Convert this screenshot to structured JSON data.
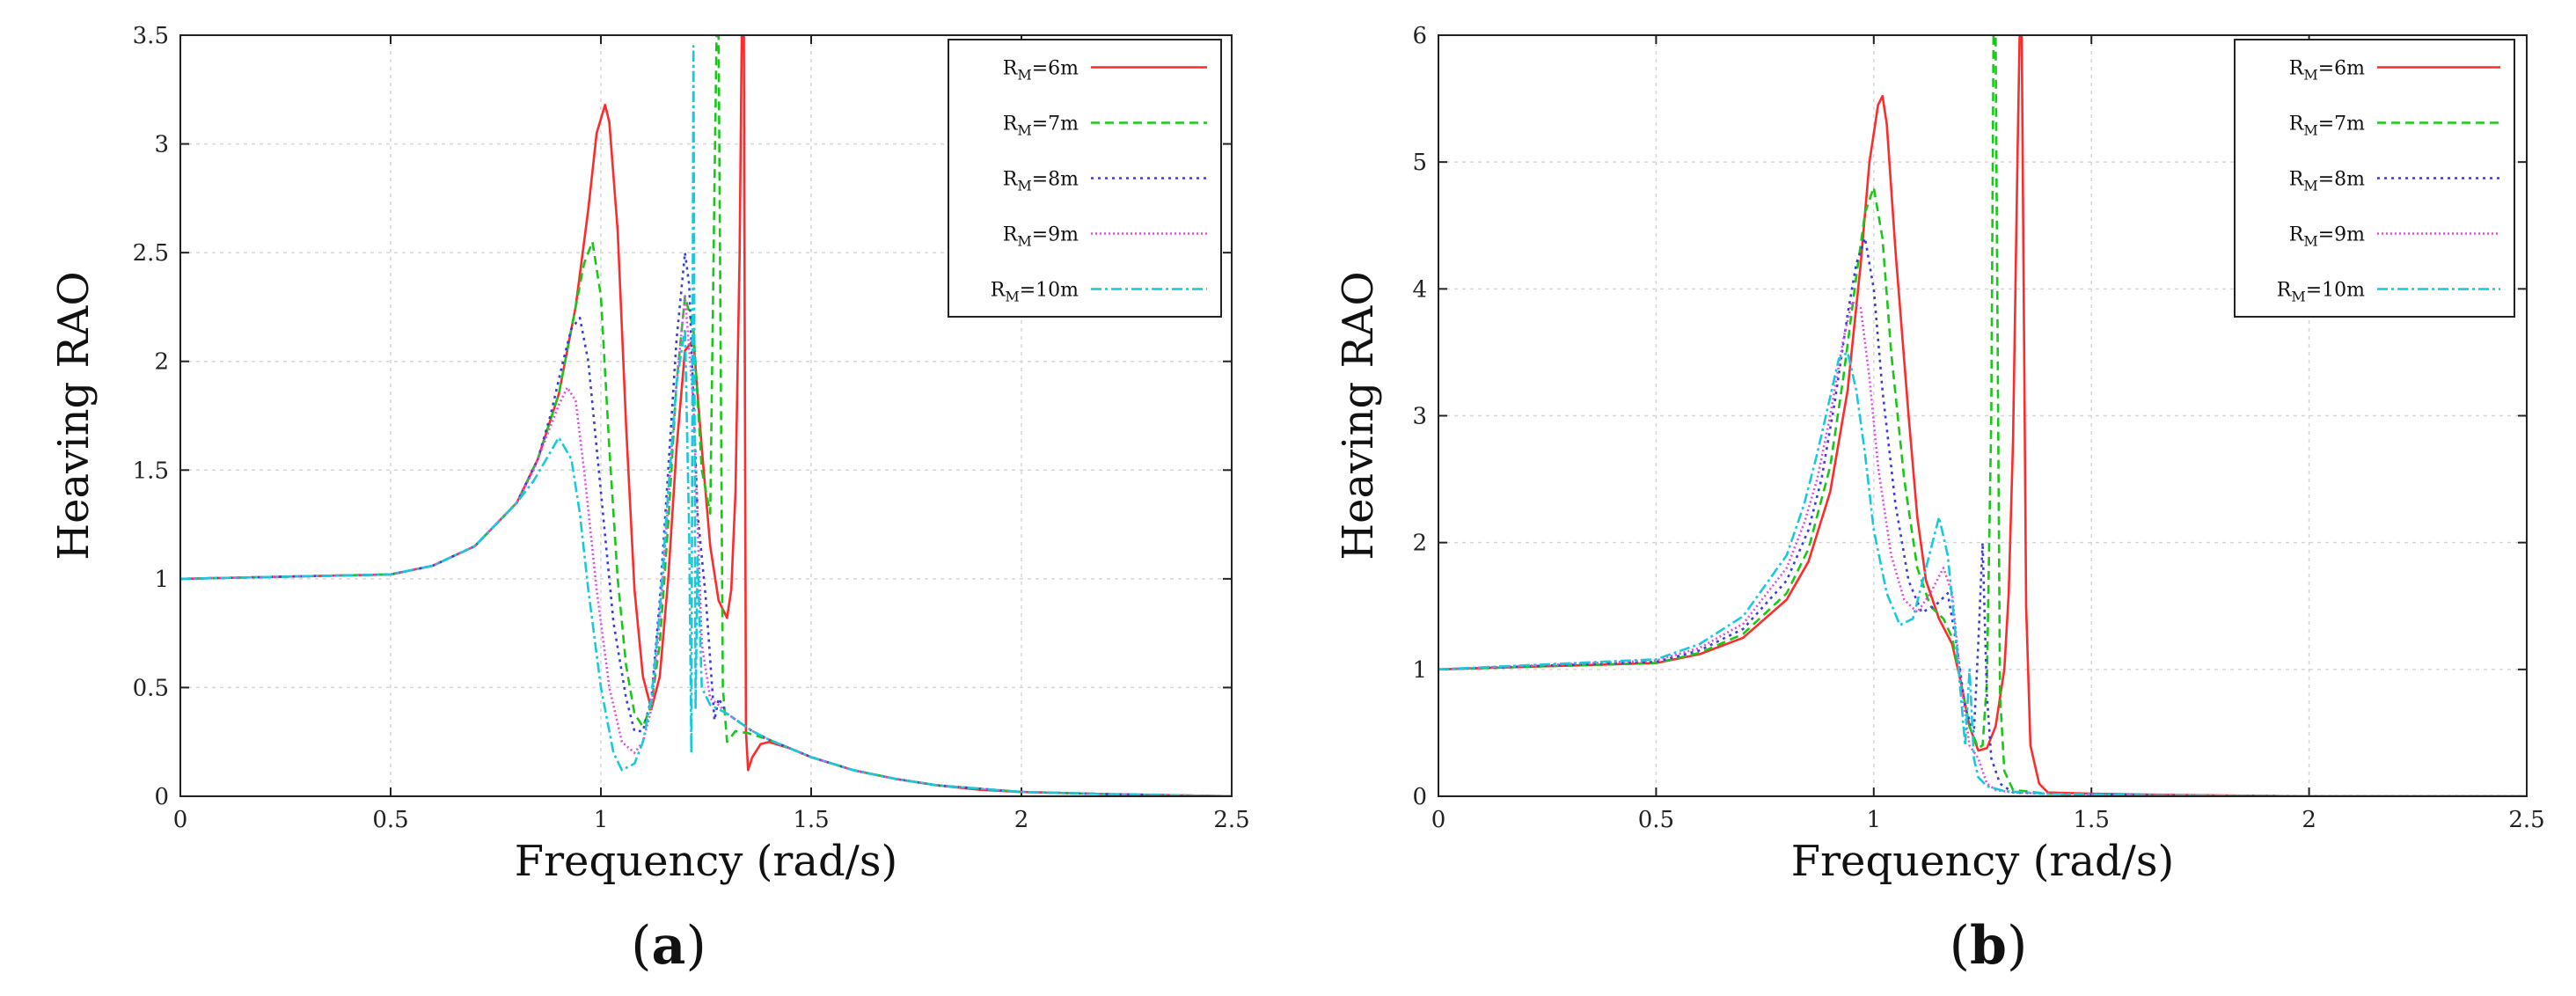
{
  "colors": {
    "R6": "#ff2a2a",
    "R7": "#18c818",
    "R8": "#3b3bd9",
    "R9": "#e24be2",
    "R10": "#17c9dd"
  },
  "chart_data": [
    {
      "type": "line",
      "panel_label": "(a)",
      "xlabel": "Frequency (rad/s)",
      "ylabel": "Heaving RAO",
      "xlim": [
        0,
        2.5
      ],
      "ylim": [
        0,
        3.5
      ],
      "xticks": [
        "0",
        "0.5",
        "1",
        "1.5",
        "2",
        "2.5"
      ],
      "yticks": [
        "0",
        "0.5",
        "1",
        "1.5",
        "2",
        "2.5",
        "3",
        "3.5"
      ],
      "grid": true,
      "legend_position": "top-right",
      "series": [
        {
          "legend_main": "R",
          "legend_sub": "M",
          "legend_rest": "=6m",
          "color_key": "R6",
          "dash": "",
          "x": [
            0,
            0.5,
            0.6,
            0.7,
            0.8,
            0.85,
            0.9,
            0.94,
            0.97,
            0.99,
            1.01,
            1.02,
            1.04,
            1.06,
            1.08,
            1.1,
            1.12,
            1.14,
            1.16,
            1.18,
            1.2,
            1.22,
            1.24,
            1.26,
            1.28,
            1.3,
            1.31,
            1.32,
            1.33,
            1.335,
            1.34,
            1.345,
            1.35,
            1.36,
            1.38,
            1.4,
            1.45,
            1.5,
            1.6,
            1.7,
            1.8,
            1.9,
            2.0,
            2.2,
            2.5
          ],
          "y": [
            1.0,
            1.02,
            1.06,
            1.15,
            1.35,
            1.55,
            1.85,
            2.25,
            2.7,
            3.05,
            3.18,
            3.1,
            2.6,
            1.7,
            0.95,
            0.55,
            0.4,
            0.55,
            1.0,
            1.6,
            2.05,
            2.1,
            1.6,
            1.15,
            0.9,
            0.82,
            0.95,
            1.4,
            2.5,
            3.5,
            3.5,
            0.3,
            0.12,
            0.18,
            0.24,
            0.25,
            0.22,
            0.18,
            0.12,
            0.08,
            0.05,
            0.03,
            0.02,
            0.01,
            0.0
          ]
        },
        {
          "legend_main": "R",
          "legend_sub": "M",
          "legend_rest": "=7m",
          "color_key": "R7",
          "dash": "10 6",
          "x": [
            0,
            0.5,
            0.6,
            0.7,
            0.8,
            0.85,
            0.9,
            0.93,
            0.96,
            0.98,
            1.0,
            1.02,
            1.04,
            1.06,
            1.08,
            1.1,
            1.12,
            1.14,
            1.16,
            1.18,
            1.2,
            1.22,
            1.24,
            1.26,
            1.27,
            1.275,
            1.28,
            1.29,
            1.3,
            1.32,
            1.35,
            1.4,
            1.45,
            1.5,
            1.6,
            1.7,
            1.8,
            2.0,
            2.2,
            2.5
          ],
          "y": [
            1.0,
            1.02,
            1.06,
            1.15,
            1.35,
            1.55,
            1.85,
            2.15,
            2.45,
            2.55,
            2.3,
            1.6,
            1.0,
            0.6,
            0.38,
            0.32,
            0.42,
            0.7,
            1.25,
            1.9,
            2.3,
            2.15,
            1.5,
            1.3,
            2.8,
            3.5,
            3.5,
            0.5,
            0.25,
            0.3,
            0.29,
            0.26,
            0.22,
            0.18,
            0.12,
            0.08,
            0.05,
            0.02,
            0.01,
            0.0
          ]
        },
        {
          "legend_main": "R",
          "legend_sub": "M",
          "legend_rest": "=8m",
          "color_key": "R8",
          "dash": "3 5",
          "x": [
            0,
            0.5,
            0.6,
            0.7,
            0.8,
            0.85,
            0.88,
            0.91,
            0.93,
            0.95,
            0.97,
            1.0,
            1.03,
            1.06,
            1.08,
            1.1,
            1.12,
            1.14,
            1.16,
            1.18,
            1.2,
            1.21,
            1.23,
            1.25,
            1.27,
            1.28,
            1.3,
            1.33,
            1.36,
            1.4,
            1.45,
            1.5,
            1.6,
            1.7,
            1.8,
            2.0,
            2.2,
            2.5
          ],
          "y": [
            1.0,
            1.02,
            1.06,
            1.15,
            1.35,
            1.55,
            1.75,
            2.0,
            2.15,
            2.2,
            2.0,
            1.4,
            0.8,
            0.45,
            0.3,
            0.3,
            0.45,
            0.9,
            1.5,
            2.1,
            2.5,
            2.35,
            1.3,
            0.9,
            0.35,
            0.45,
            0.38,
            0.34,
            0.3,
            0.26,
            0.22,
            0.18,
            0.12,
            0.08,
            0.05,
            0.02,
            0.01,
            0.0
          ]
        },
        {
          "legend_main": "R",
          "legend_sub": "M",
          "legend_rest": "=9m",
          "color_key": "R9",
          "dash": "2 3",
          "x": [
            0,
            0.5,
            0.6,
            0.7,
            0.8,
            0.84,
            0.87,
            0.9,
            0.92,
            0.94,
            0.96,
            0.99,
            1.02,
            1.05,
            1.08,
            1.1,
            1.12,
            1.14,
            1.16,
            1.18,
            1.2,
            1.22,
            1.24,
            1.26,
            1.28,
            1.3,
            1.33,
            1.36,
            1.4,
            1.45,
            1.5,
            1.6,
            1.7,
            1.8,
            2.0,
            2.2,
            2.5
          ],
          "y": [
            1.0,
            1.02,
            1.06,
            1.15,
            1.35,
            1.5,
            1.65,
            1.8,
            1.88,
            1.82,
            1.5,
            0.95,
            0.5,
            0.25,
            0.2,
            0.25,
            0.4,
            0.8,
            1.35,
            1.9,
            2.3,
            1.8,
            0.7,
            0.45,
            0.42,
            0.38,
            0.34,
            0.3,
            0.26,
            0.22,
            0.18,
            0.12,
            0.08,
            0.05,
            0.02,
            0.01,
            0.0
          ]
        },
        {
          "legend_main": "R",
          "legend_sub": "M",
          "legend_rest": "=10m",
          "color_key": "R10",
          "dash": "12 4 3 4",
          "x": [
            0,
            0.5,
            0.6,
            0.7,
            0.8,
            0.84,
            0.87,
            0.9,
            0.93,
            0.95,
            0.97,
            1.0,
            1.03,
            1.05,
            1.08,
            1.1,
            1.12,
            1.14,
            1.16,
            1.18,
            1.2,
            1.21,
            1.215,
            1.22,
            1.225,
            1.23,
            1.24,
            1.26,
            1.28,
            1.3,
            1.33,
            1.36,
            1.4,
            1.45,
            1.5,
            1.6,
            1.7,
            1.8,
            2.0,
            2.2,
            2.5
          ],
          "y": [
            1.0,
            1.02,
            1.06,
            1.15,
            1.35,
            1.45,
            1.55,
            1.65,
            1.55,
            1.3,
            0.95,
            0.5,
            0.2,
            0.12,
            0.15,
            0.25,
            0.45,
            0.85,
            1.4,
            1.9,
            2.15,
            1.2,
            0.2,
            3.45,
            0.4,
            1.1,
            0.5,
            0.42,
            0.4,
            0.38,
            0.34,
            0.3,
            0.26,
            0.22,
            0.18,
            0.12,
            0.08,
            0.05,
            0.02,
            0.01,
            0.0
          ]
        }
      ]
    },
    {
      "type": "line",
      "panel_label": "(b)",
      "xlabel": "Frequency (rad/s)",
      "ylabel": "Heaving RAO",
      "xlim": [
        0,
        2.5
      ],
      "ylim": [
        0,
        6
      ],
      "xticks": [
        "0",
        "0.5",
        "1",
        "1.5",
        "2",
        "2.5"
      ],
      "yticks": [
        "0",
        "1",
        "2",
        "3",
        "4",
        "5",
        "6"
      ],
      "grid": true,
      "legend_position": "top-right",
      "series": [
        {
          "legend_main": "R",
          "legend_sub": "M",
          "legend_rest": "=6m",
          "color_key": "R6",
          "dash": "",
          "x": [
            0,
            0.5,
            0.6,
            0.7,
            0.8,
            0.85,
            0.9,
            0.94,
            0.97,
            0.99,
            1.01,
            1.02,
            1.03,
            1.05,
            1.08,
            1.1,
            1.12,
            1.15,
            1.18,
            1.2,
            1.22,
            1.24,
            1.26,
            1.28,
            1.3,
            1.31,
            1.32,
            1.33,
            1.335,
            1.34,
            1.35,
            1.36,
            1.38,
            1.4,
            1.5,
            1.7,
            2.0,
            2.5
          ],
          "y": [
            1.0,
            1.05,
            1.12,
            1.25,
            1.55,
            1.85,
            2.4,
            3.2,
            4.2,
            5.0,
            5.45,
            5.52,
            5.3,
            4.3,
            3.0,
            2.2,
            1.7,
            1.4,
            1.2,
            0.9,
            0.55,
            0.36,
            0.38,
            0.55,
            1.0,
            1.6,
            2.8,
            5.0,
            6.0,
            6.0,
            1.5,
            0.4,
            0.1,
            0.03,
            0.02,
            0.01,
            0.0,
            0.0
          ]
        },
        {
          "legend_main": "R",
          "legend_sub": "M",
          "legend_rest": "=7m",
          "color_key": "R7",
          "dash": "10 6",
          "x": [
            0,
            0.5,
            0.6,
            0.7,
            0.8,
            0.85,
            0.9,
            0.93,
            0.96,
            0.98,
            1.0,
            1.02,
            1.04,
            1.07,
            1.1,
            1.13,
            1.16,
            1.18,
            1.2,
            1.22,
            1.24,
            1.25,
            1.26,
            1.27,
            1.275,
            1.28,
            1.29,
            1.3,
            1.32,
            1.4,
            1.6,
            2.0,
            2.5
          ],
          "y": [
            1.0,
            1.05,
            1.13,
            1.28,
            1.6,
            1.95,
            2.6,
            3.3,
            4.1,
            4.6,
            4.8,
            4.4,
            3.5,
            2.5,
            1.8,
            1.5,
            1.4,
            1.25,
            0.9,
            0.55,
            0.38,
            0.4,
            0.9,
            3.0,
            6.0,
            6.0,
            0.8,
            0.2,
            0.05,
            0.02,
            0.01,
            0.0,
            0.0
          ]
        },
        {
          "legend_main": "R",
          "legend_sub": "M",
          "legend_rest": "=8m",
          "color_key": "R8",
          "dash": "3 5",
          "x": [
            0,
            0.5,
            0.6,
            0.7,
            0.8,
            0.85,
            0.88,
            0.91,
            0.94,
            0.96,
            0.98,
            1.0,
            1.02,
            1.05,
            1.08,
            1.11,
            1.14,
            1.17,
            1.19,
            1.21,
            1.23,
            1.24,
            1.25,
            1.26,
            1.27,
            1.29,
            1.32,
            1.4,
            1.6,
            2.0,
            2.5
          ],
          "y": [
            1.0,
            1.06,
            1.15,
            1.32,
            1.7,
            2.1,
            2.5,
            3.1,
            3.8,
            4.2,
            4.4,
            4.0,
            3.2,
            2.3,
            1.7,
            1.45,
            1.5,
            1.6,
            1.2,
            0.7,
            0.5,
            1.2,
            2.0,
            0.8,
            0.3,
            0.1,
            0.03,
            0.02,
            0.01,
            0.0,
            0.0
          ]
        },
        {
          "legend_main": "R",
          "legend_sub": "M",
          "legend_rest": "=9m",
          "color_key": "R9",
          "dash": "2 3",
          "x": [
            0,
            0.5,
            0.6,
            0.7,
            0.8,
            0.84,
            0.87,
            0.9,
            0.93,
            0.95,
            0.97,
            0.99,
            1.01,
            1.04,
            1.07,
            1.1,
            1.13,
            1.16,
            1.18,
            1.2,
            1.22,
            1.24,
            1.26,
            1.28,
            1.32,
            1.4,
            1.6,
            2.0,
            2.5
          ],
          "y": [
            1.0,
            1.07,
            1.17,
            1.36,
            1.8,
            2.15,
            2.5,
            3.0,
            3.6,
            3.9,
            3.85,
            3.3,
            2.6,
            1.9,
            1.55,
            1.45,
            1.6,
            1.8,
            1.6,
            0.9,
            0.4,
            0.3,
            0.1,
            0.05,
            0.03,
            0.02,
            0.01,
            0.0,
            0.0
          ]
        },
        {
          "legend_main": "R",
          "legend_sub": "M",
          "legend_rest": "=10m",
          "color_key": "R10",
          "dash": "12 4 3 4",
          "x": [
            0,
            0.5,
            0.6,
            0.7,
            0.8,
            0.84,
            0.87,
            0.9,
            0.92,
            0.94,
            0.96,
            0.98,
            1.0,
            1.03,
            1.06,
            1.09,
            1.12,
            1.15,
            1.17,
            1.19,
            1.21,
            1.22,
            1.23,
            1.24,
            1.26,
            1.3,
            1.4,
            1.6,
            2.0,
            2.5
          ],
          "y": [
            1.0,
            1.08,
            1.2,
            1.42,
            1.9,
            2.3,
            2.7,
            3.15,
            3.45,
            3.5,
            3.2,
            2.7,
            2.1,
            1.6,
            1.35,
            1.4,
            1.8,
            2.2,
            1.9,
            1.2,
            0.4,
            1.0,
            0.3,
            0.15,
            0.08,
            0.04,
            0.02,
            0.01,
            0.0,
            0.0
          ]
        }
      ]
    }
  ]
}
